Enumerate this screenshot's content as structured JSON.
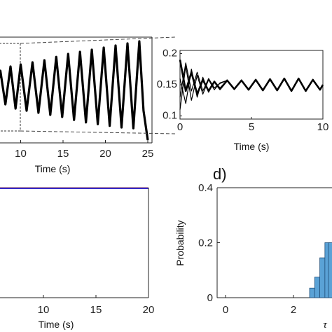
{
  "panel_labels": {
    "d": "d)"
  },
  "chart_data": [
    {
      "id": "top-left",
      "type": "line",
      "xlabel": "Time (s)",
      "xticks": [
        10,
        15,
        20,
        25
      ],
      "xlim": [
        5,
        25
      ],
      "series": [
        {
          "x": [
            5,
            5.6,
            6.3,
            7.0,
            7.6,
            8.2,
            8.8,
            9.4,
            10.0,
            10.7,
            11.4,
            12.1,
            12.8,
            13.5,
            14.2,
            14.9,
            15.6,
            16.3,
            17.0,
            17.7,
            18.4,
            19.1,
            19.8,
            20.5,
            21.2,
            21.9,
            22.6,
            23.3,
            24.0,
            24.5,
            25.0
          ],
          "y": [
            0.05,
            -0.1,
            0.3,
            -0.2,
            0.45,
            -0.35,
            0.55,
            -0.45,
            0.6,
            -0.5,
            0.65,
            -0.55,
            0.7,
            -0.6,
            0.78,
            -0.65,
            0.85,
            -0.72,
            0.9,
            -0.78,
            0.95,
            -0.82,
            1.0,
            -0.86,
            1.05,
            -0.9,
            1.1,
            -0.92,
            1.15,
            -0.5,
            -1.2
          ]
        }
      ]
    },
    {
      "id": "inset",
      "type": "line",
      "xlabel": "Time (s)",
      "xticks": [
        0,
        5,
        10
      ],
      "yticks": [
        0.1,
        0.15,
        0.2
      ],
      "xlim": [
        0,
        10
      ],
      "ylim": [
        0.095,
        0.205
      ],
      "series": [
        {
          "x": [
            0,
            0.4,
            0.8,
            1.2,
            1.6,
            2.0,
            2.4,
            2.8,
            3.3,
            3.8,
            4.3,
            4.8,
            5.3,
            5.8,
            6.3,
            6.8,
            7.3,
            7.8,
            8.3,
            8.8,
            9.3,
            9.8,
            10
          ],
          "y": [
            0.19,
            0.14,
            0.17,
            0.135,
            0.158,
            0.14,
            0.155,
            0.143,
            0.157,
            0.143,
            0.157,
            0.142,
            0.158,
            0.141,
            0.159,
            0.141,
            0.16,
            0.14,
            0.16,
            0.14,
            0.158,
            0.142,
            0.15
          ]
        },
        {
          "x": [
            0,
            0.4,
            0.8,
            1.2,
            1.6,
            2.0,
            2.4,
            2.8,
            3.3
          ],
          "y": [
            0.11,
            0.18,
            0.125,
            0.165,
            0.135,
            0.158,
            0.142,
            0.153,
            0.157
          ]
        },
        {
          "x": [
            0,
            0.4,
            0.8,
            1.2,
            1.6,
            2.0,
            2.4,
            2.8,
            3.3
          ],
          "y": [
            0.16,
            0.12,
            0.175,
            0.13,
            0.162,
            0.138,
            0.156,
            0.145,
            0.157
          ]
        },
        {
          "x": [
            0,
            0.4,
            0.8,
            1.2,
            1.6,
            2.0,
            2.4,
            2.8,
            3.3
          ],
          "y": [
            0.13,
            0.185,
            0.14,
            0.17,
            0.14,
            0.16,
            0.145,
            0.152,
            0.157
          ]
        }
      ]
    },
    {
      "id": "bottom-left",
      "type": "line",
      "xlabel": "Time (s)",
      "xticks": [
        10,
        15,
        20
      ],
      "xlim": [
        3.5,
        20
      ]
    },
    {
      "id": "d",
      "type": "bar",
      "ylabel": "Probability",
      "xlabel": "τ",
      "xticks": [
        0,
        2
      ],
      "yticks": [
        0,
        0.2,
        0.4
      ],
      "ylim": [
        0,
        0.4
      ],
      "bars": [
        {
          "x": 2.55,
          "value": 0.035
        },
        {
          "x": 2.7,
          "value": 0.075
        },
        {
          "x": 2.85,
          "value": 0.145
        },
        {
          "x": 3.0,
          "value": 0.2
        }
      ]
    }
  ]
}
